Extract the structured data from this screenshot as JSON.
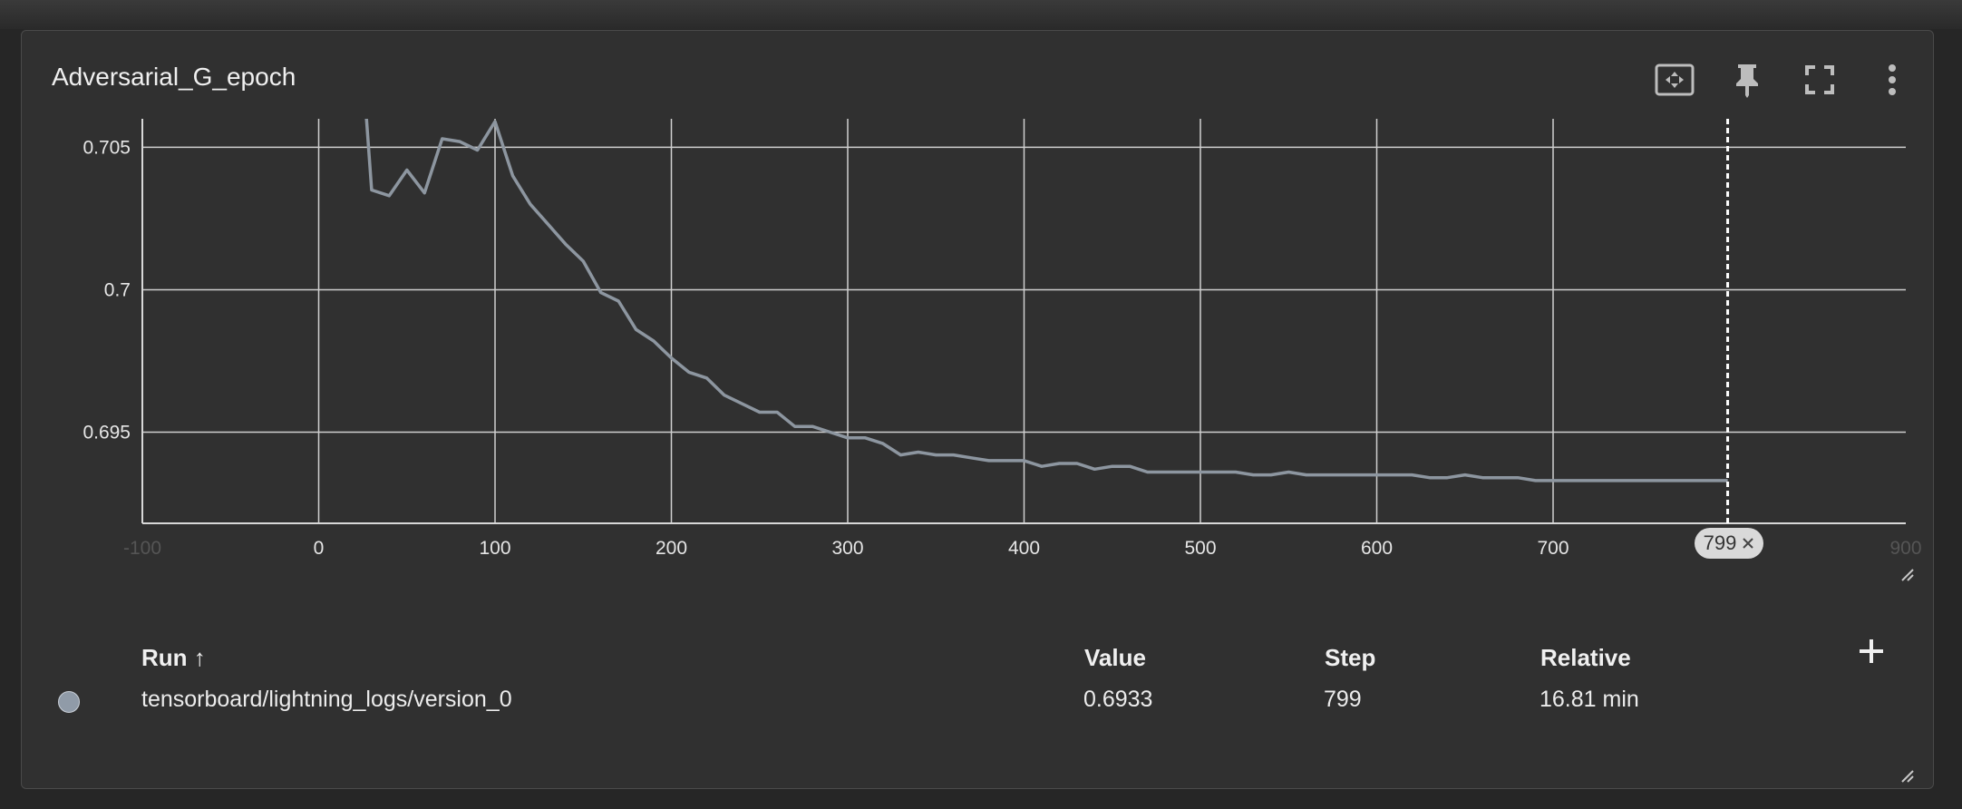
{
  "card": {
    "title": "Adversarial_G_epoch"
  },
  "toolbar": {
    "fit_icon": "fit-to-domain-icon",
    "pin_icon": "pin-icon",
    "fullscreen_icon": "fullscreen-icon",
    "more_icon": "more-vert-icon"
  },
  "chart_data": {
    "type": "line",
    "title": "Adversarial_G_epoch",
    "xlabel": "",
    "ylabel": "",
    "xlim": [
      -100,
      900
    ],
    "ylim": [
      0.6918,
      0.706
    ],
    "x_ticks": [
      "-100",
      "0",
      "100",
      "200",
      "300",
      "400",
      "500",
      "600",
      "700",
      "799",
      "900"
    ],
    "y_ticks": [
      "0.705",
      "0.7",
      "0.695"
    ],
    "y_tick_values": [
      0.705,
      0.7,
      0.695
    ],
    "hover_step": 799,
    "hover_label": "799",
    "series": [
      {
        "name": "tensorboard/lightning_logs/version_0",
        "color": "#8d96a0",
        "x": [
          25,
          30,
          40,
          50,
          60,
          70,
          80,
          90,
          100,
          110,
          120,
          130,
          140,
          150,
          160,
          170,
          180,
          190,
          200,
          210,
          220,
          230,
          240,
          250,
          260,
          270,
          280,
          290,
          300,
          310,
          320,
          330,
          340,
          350,
          360,
          370,
          380,
          390,
          400,
          410,
          420,
          430,
          440,
          450,
          460,
          470,
          480,
          490,
          500,
          510,
          520,
          530,
          540,
          550,
          560,
          570,
          580,
          590,
          600,
          610,
          620,
          630,
          640,
          650,
          660,
          670,
          680,
          690,
          700,
          710,
          720,
          730,
          740,
          750,
          760,
          770,
          780,
          790,
          799
        ],
        "y": [
          0.7078,
          0.7035,
          0.7033,
          0.7042,
          0.7034,
          0.7053,
          0.7052,
          0.7049,
          0.7059,
          0.704,
          0.703,
          0.7023,
          0.7016,
          0.701,
          0.6999,
          0.6996,
          0.6986,
          0.6982,
          0.6976,
          0.6971,
          0.6969,
          0.6963,
          0.696,
          0.6957,
          0.6957,
          0.6952,
          0.6952,
          0.695,
          0.6948,
          0.6948,
          0.6946,
          0.6942,
          0.6943,
          0.6942,
          0.6942,
          0.6941,
          0.694,
          0.694,
          0.694,
          0.6938,
          0.6939,
          0.6939,
          0.6937,
          0.6938,
          0.6938,
          0.6936,
          0.6936,
          0.6936,
          0.6936,
          0.6936,
          0.6936,
          0.6935,
          0.6935,
          0.6936,
          0.6935,
          0.6935,
          0.6935,
          0.6935,
          0.6935,
          0.6935,
          0.6935,
          0.6934,
          0.6934,
          0.6935,
          0.6934,
          0.6934,
          0.6934,
          0.6933,
          0.6933,
          0.6933,
          0.6933,
          0.6933,
          0.6933,
          0.6933,
          0.6933,
          0.6933,
          0.6933,
          0.6933,
          0.6933
        ]
      }
    ]
  },
  "table": {
    "headers": {
      "run": "Run ↑",
      "value": "Value",
      "step": "Step",
      "relative": "Relative"
    },
    "rows": [
      {
        "color": "#909ba8",
        "run": "tensorboard/lightning_logs/version_0",
        "value": "0.6933",
        "step": "799",
        "relative": "16.81 min"
      }
    ]
  },
  "icons": {
    "add": "add-icon",
    "close": "close-icon",
    "resize": "resize-icon"
  }
}
